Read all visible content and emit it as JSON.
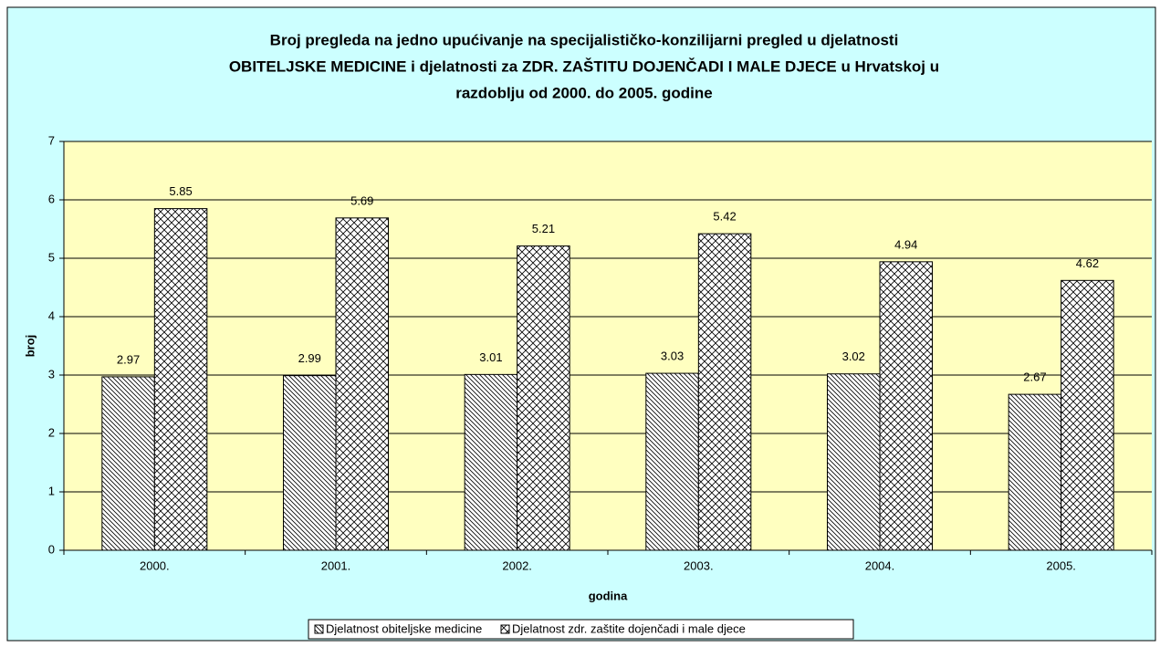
{
  "chart_data": {
    "type": "bar",
    "title": [
      "Broj pregleda na jedno upućivanje na specijalističko-konzilijarni pregled u djelatnosti",
      "OBITELJSKE MEDICINE i djelatnosti za ZDR. ZAŠTITU DOJENČADI I MALE DJECE u Hrvatskoj u",
      "razdoblju od 2000. do 2005. godine"
    ],
    "x_label": "godina",
    "y_label": "broj",
    "categories": [
      "2000.",
      "2001.",
      "2002.",
      "2003.",
      "2004.",
      "2005."
    ],
    "series": [
      {
        "name": "Djelatnost obiteljske medicine",
        "color": "#000000",
        "pattern": "diagonal",
        "values": [
          2.97,
          2.99,
          3.01,
          3.03,
          3.02,
          2.67
        ]
      },
      {
        "name": "Djelatnost zdr. zaštite dojenčadi i male djece",
        "color": "#000000",
        "pattern": "crosshatch",
        "values": [
          5.85,
          5.69,
          5.21,
          5.42,
          4.94,
          4.62
        ]
      }
    ],
    "ylim": [
      0,
      7
    ],
    "yticks": [
      0,
      1,
      2,
      3,
      4,
      5,
      6,
      7
    ],
    "grid": true,
    "legend": "bottom"
  }
}
